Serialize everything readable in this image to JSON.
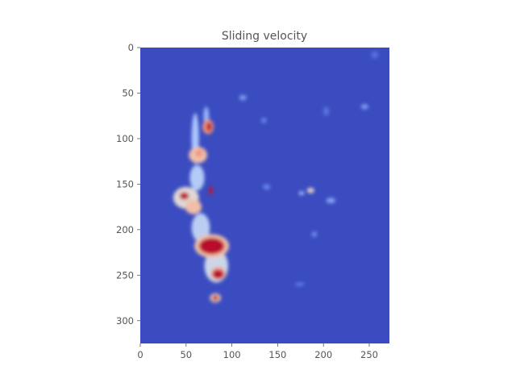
{
  "chart_data": {
    "type": "heatmap",
    "title": "Sliding velocity",
    "xlabel": "",
    "ylabel": "",
    "xlim": [
      0,
      272
    ],
    "ylim": [
      325,
      0
    ],
    "y_inverted": true,
    "grid": false,
    "colormap": "coolwarm",
    "background_value": 0,
    "x_ticks": [
      0,
      50,
      100,
      150,
      200,
      250
    ],
    "y_ticks": [
      0,
      50,
      100,
      150,
      200,
      250,
      300
    ],
    "x_tick_labels": [
      "0",
      "50",
      "100",
      "150",
      "200",
      "250"
    ],
    "y_tick_labels": [
      "0",
      "50",
      "100",
      "150",
      "200",
      "250",
      "300"
    ],
    "colors": {
      "low": "#3b4cc0",
      "mid": "#dddddd",
      "high": "#b40426"
    },
    "blobs": [
      {
        "x": 60,
        "y": 100,
        "rx": 4,
        "ry": 28,
        "value": 0.35
      },
      {
        "x": 72,
        "y": 75,
        "rx": 3,
        "ry": 10,
        "value": 0.3
      },
      {
        "x": 74,
        "y": 87,
        "rx": 6,
        "ry": 8,
        "value": 0.72
      },
      {
        "x": 75,
        "y": 87,
        "rx": 3,
        "ry": 5,
        "value": 0.98
      },
      {
        "x": 63,
        "y": 118,
        "rx": 10,
        "ry": 9,
        "value": 0.62
      },
      {
        "x": 64,
        "y": 116,
        "rx": 4,
        "ry": 4,
        "value": 0.72
      },
      {
        "x": 62,
        "y": 143,
        "rx": 8,
        "ry": 14,
        "value": 0.38
      },
      {
        "x": 50,
        "y": 165,
        "rx": 14,
        "ry": 12,
        "value": 0.52
      },
      {
        "x": 48,
        "y": 163,
        "rx": 5,
        "ry": 4,
        "value": 0.97
      },
      {
        "x": 58,
        "y": 175,
        "rx": 9,
        "ry": 8,
        "value": 0.62
      },
      {
        "x": 77,
        "y": 157,
        "rx": 2,
        "ry": 5,
        "value": 0.97
      },
      {
        "x": 66,
        "y": 198,
        "rx": 10,
        "ry": 16,
        "value": 0.4
      },
      {
        "x": 78,
        "y": 218,
        "rx": 19,
        "ry": 13,
        "value": 0.62
      },
      {
        "x": 78,
        "y": 218,
        "rx": 14,
        "ry": 9,
        "value": 0.99
      },
      {
        "x": 83,
        "y": 240,
        "rx": 13,
        "ry": 18,
        "value": 0.45
      },
      {
        "x": 85,
        "y": 248,
        "rx": 8,
        "ry": 7,
        "value": 0.7
      },
      {
        "x": 85,
        "y": 249,
        "rx": 6,
        "ry": 5,
        "value": 0.99
      },
      {
        "x": 82,
        "y": 275,
        "rx": 6,
        "ry": 5,
        "value": 0.6
      },
      {
        "x": 82,
        "y": 275,
        "rx": 3,
        "ry": 3,
        "value": 0.95
      },
      {
        "x": 186,
        "y": 157,
        "rx": 4,
        "ry": 3,
        "value": 0.55
      },
      {
        "x": 176,
        "y": 160,
        "rx": 3,
        "ry": 2,
        "value": 0.35
      },
      {
        "x": 208,
        "y": 168,
        "rx": 5,
        "ry": 3,
        "value": 0.25
      },
      {
        "x": 112,
        "y": 55,
        "rx": 4,
        "ry": 3,
        "value": 0.22
      },
      {
        "x": 245,
        "y": 65,
        "rx": 4,
        "ry": 3,
        "value": 0.22
      },
      {
        "x": 135,
        "y": 80,
        "rx": 3,
        "ry": 3,
        "value": 0.16
      },
      {
        "x": 138,
        "y": 153,
        "rx": 4,
        "ry": 3,
        "value": 0.16
      },
      {
        "x": 190,
        "y": 205,
        "rx": 3,
        "ry": 3,
        "value": 0.18
      },
      {
        "x": 174,
        "y": 260,
        "rx": 5,
        "ry": 2,
        "value": 0.14
      },
      {
        "x": 203,
        "y": 70,
        "rx": 3,
        "ry": 5,
        "value": 0.12
      },
      {
        "x": 256,
        "y": 8,
        "rx": 4,
        "ry": 4,
        "value": 0.1
      }
    ]
  }
}
